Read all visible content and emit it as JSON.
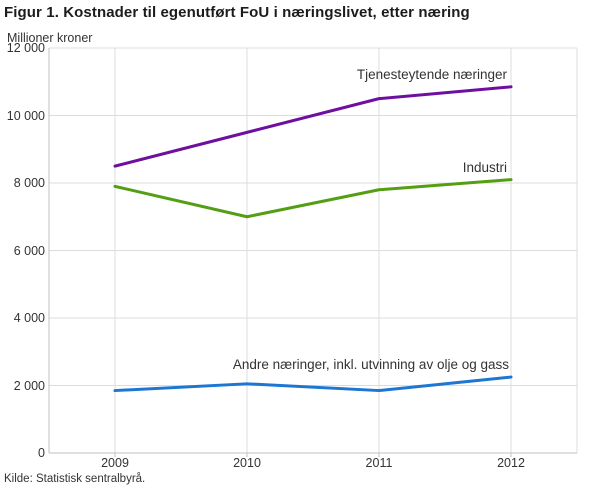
{
  "figure": {
    "title": "Figur 1. Kostnader til egenutført FoU i næringslivet, etter næring",
    "unit_label": "Millioner kroner",
    "source": "Kilde: Statistisk sentralbyrå."
  },
  "chart_data": {
    "type": "line",
    "title": "Figur 1. Kostnader til egenutført FoU i næringslivet, etter næring",
    "xlabel": "",
    "ylabel": "Millioner kroner",
    "categories": [
      "2009",
      "2010",
      "2011",
      "2012"
    ],
    "series": [
      {
        "name": "Tjenesteytende næringer",
        "color": "#6f0fa0",
        "values": [
          8500,
          9500,
          10500,
          10850
        ]
      },
      {
        "name": "Industri",
        "color": "#549e14",
        "values": [
          7900,
          7000,
          7800,
          8100
        ]
      },
      {
        "name": "Andre næringer, inkl. utvinning av olje og gass",
        "color": "#1d76d2",
        "values": [
          1850,
          2050,
          1850,
          2250
        ]
      }
    ],
    "ylim": [
      0,
      12000
    ],
    "y_ticks": [
      {
        "value": 0,
        "label": "0"
      },
      {
        "value": 2000,
        "label": "2 000"
      },
      {
        "value": 4000,
        "label": "4 000"
      },
      {
        "value": 6000,
        "label": "6 000"
      },
      {
        "value": 8000,
        "label": "8 000"
      },
      {
        "value": 10000,
        "label": "10 000"
      },
      {
        "value": 12000,
        "label": "12 000"
      }
    ],
    "grid": true,
    "legend_position": "inline-labels",
    "colors": {
      "gridline": "#dcdcdc",
      "axis": "#c0c0c0",
      "text": "#333333"
    }
  }
}
